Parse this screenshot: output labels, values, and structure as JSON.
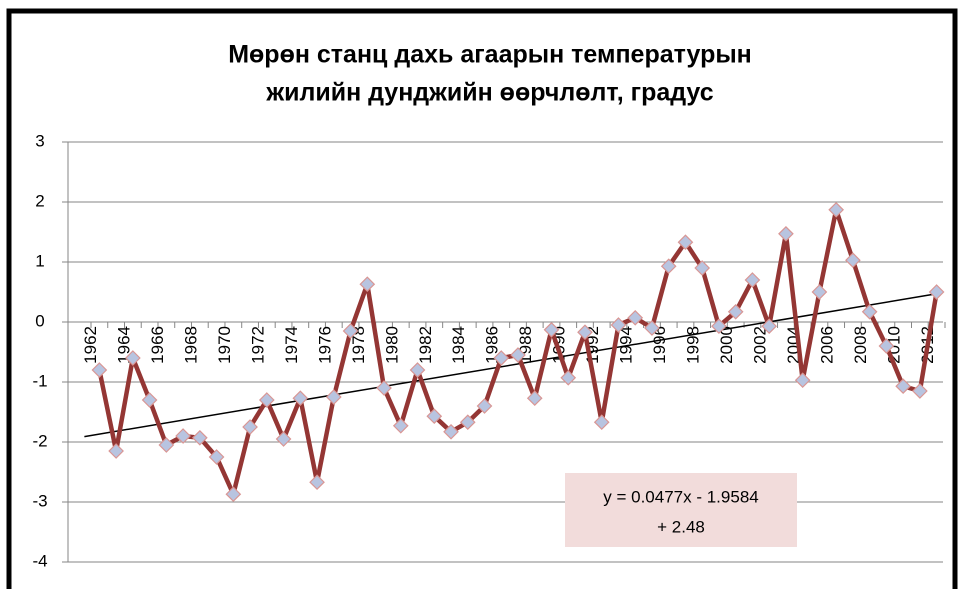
{
  "chart_data": {
    "type": "line",
    "title": [
      "Мөрөн станц дахь агаарын температурын",
      "жилийн дунджийн өөрчлөлт, градус"
    ],
    "categories": [
      "1962",
      null,
      "1964",
      null,
      "1966",
      null,
      "1968",
      null,
      "1970",
      null,
      "1972",
      null,
      "1974",
      null,
      "1976",
      null,
      "1978",
      null,
      "1980",
      null,
      "1982",
      null,
      "1984",
      null,
      "1986",
      null,
      "1988",
      null,
      "1990",
      null,
      "1992",
      null,
      "1994",
      null,
      "1996",
      null,
      "1998",
      null,
      "2000",
      null,
      "2002",
      null,
      "2004",
      null,
      "2006",
      null,
      "2008",
      null,
      "2010",
      null,
      "2012"
    ],
    "series": [
      {
        "color": "#943634",
        "values": [
          -0.8,
          -2.15,
          -0.6,
          -1.3,
          -2.05,
          -1.9,
          -1.93,
          -2.25,
          -2.87,
          -1.75,
          -1.3,
          -1.95,
          -1.27,
          -2.67,
          -1.25,
          -0.15,
          0.63,
          -1.1,
          -1.73,
          -0.8,
          -1.57,
          -1.83,
          -1.67,
          -1.4,
          -0.6,
          -0.55,
          -1.27,
          -0.13,
          -0.93,
          -0.17,
          -1.67,
          -0.05,
          0.07,
          -0.1,
          0.93,
          1.33,
          0.9,
          -0.07,
          0.17,
          0.7,
          -0.07,
          1.47,
          -0.97,
          0.5,
          1.87,
          1.03,
          0.17,
          -0.4,
          -1.07,
          -1.15,
          0.5
        ]
      }
    ],
    "marker_color": "#b8c4e0",
    "trendline": {
      "values": [
        -1.91,
        0.47
      ],
      "color": "#000000"
    },
    "annotation": [
      "y = 0.0477x - 1.9584",
      "+ 2.48"
    ],
    "ylim": [
      -4,
      3
    ],
    "yticks": [
      -4,
      -3,
      -2,
      -1,
      0,
      1,
      2,
      3
    ],
    "grid": true
  }
}
